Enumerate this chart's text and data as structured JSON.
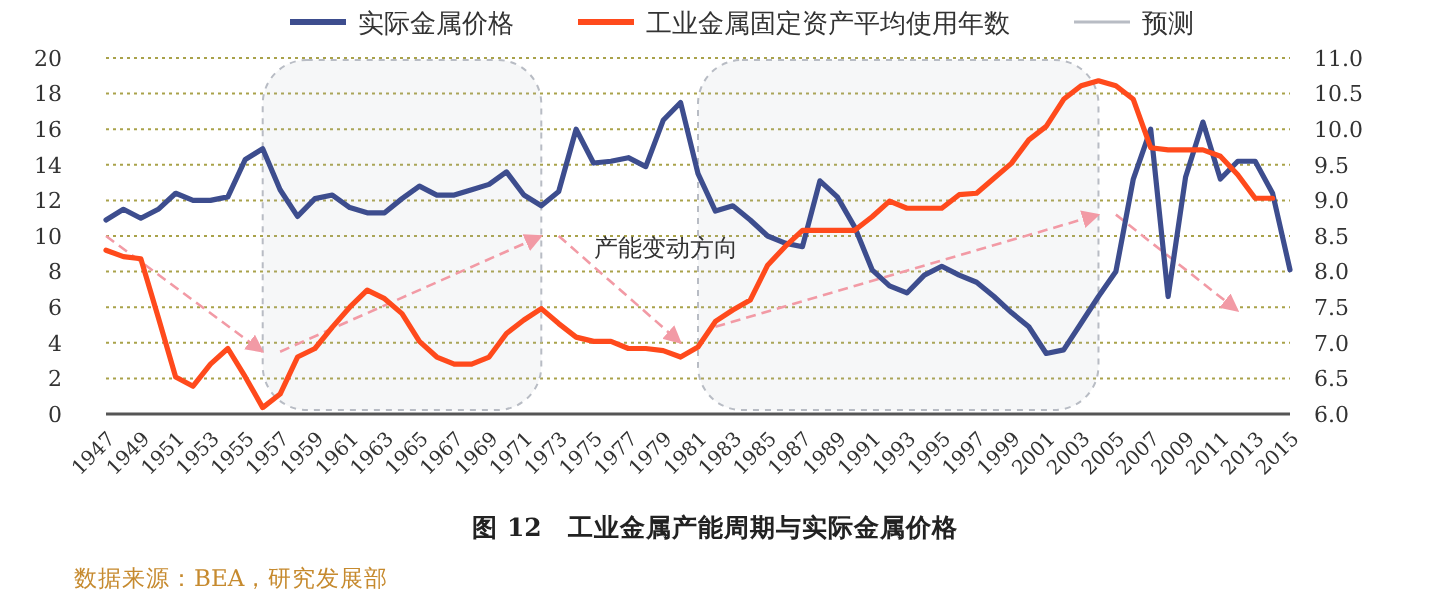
{
  "chart_data": {
    "type": "line",
    "title": "图 12　工业金属产能周期与实际金属价格",
    "annotations": [
      "产能变动方向",
      "数据来源：BEA，研究发展部"
    ],
    "x": [
      1947,
      1948,
      1949,
      1950,
      1951,
      1952,
      1953,
      1954,
      1955,
      1956,
      1957,
      1958,
      1959,
      1960,
      1961,
      1962,
      1963,
      1964,
      1965,
      1966,
      1967,
      1968,
      1969,
      1970,
      1971,
      1972,
      1973,
      1974,
      1975,
      1976,
      1977,
      1978,
      1979,
      1980,
      1981,
      1982,
      1983,
      1984,
      1985,
      1986,
      1987,
      1988,
      1989,
      1990,
      1991,
      1992,
      1993,
      1994,
      1995,
      1996,
      1997,
      1998,
      1999,
      2000,
      2001,
      2002,
      2003,
      2004,
      2005,
      2006,
      2007,
      2008,
      2009,
      2010,
      2011,
      2012,
      2013,
      2014,
      2015
    ],
    "series": [
      {
        "name": "实际金属价格",
        "color": "#3d4d8e",
        "values": [
          10.9,
          11.5,
          11.0,
          11.5,
          12.4,
          12.0,
          12.0,
          12.2,
          14.3,
          14.9,
          12.6,
          11.1,
          12.1,
          12.3,
          11.6,
          11.3,
          11.3,
          12.1,
          12.8,
          12.3,
          12.3,
          12.6,
          12.9,
          13.6,
          12.3,
          11.7,
          12.5,
          16.0,
          14.1,
          14.2,
          14.4,
          13.9,
          16.5,
          17.5,
          13.5,
          11.4,
          11.7,
          10.9,
          10.0,
          9.6,
          9.4,
          13.1,
          12.2,
          10.5,
          8.1,
          7.2,
          6.8,
          7.8,
          8.3,
          7.8,
          7.4,
          6.6,
          5.7,
          4.9,
          3.4,
          3.6,
          5.1,
          6.6,
          8.0,
          13.2,
          16.0,
          6.6,
          13.3,
          16.4,
          13.2,
          14.2,
          14.2,
          12.4,
          8.1
        ]
      },
      {
        "name": "工业金属固定资产平均使用年数",
        "color": "#ff4a1c",
        "axis": "y2",
        "values": [
          8.3,
          8.21,
          8.18,
          7.36,
          6.52,
          6.39,
          6.7,
          6.92,
          6.52,
          6.09,
          6.28,
          6.8,
          6.92,
          7.22,
          7.5,
          7.74,
          7.62,
          7.41,
          7.02,
          6.8,
          6.7,
          6.7,
          6.8,
          7.13,
          7.32,
          7.48,
          7.27,
          7.08,
          7.02,
          7.02,
          6.92,
          6.92,
          6.89,
          6.8,
          6.94,
          7.3,
          7.46,
          7.6,
          8.09,
          8.35,
          8.58,
          8.58,
          8.58,
          8.58,
          8.77,
          8.99,
          8.89,
          8.89,
          8.89,
          9.08,
          9.1,
          9.31,
          9.52,
          9.85,
          10.04,
          10.42,
          10.61,
          10.68,
          10.61,
          10.42,
          9.74,
          9.71,
          9.71,
          9.71,
          9.62,
          9.36,
          9.03,
          9.03,
          null
        ]
      }
    ],
    "bands": [
      {
        "axis": "x",
        "from": 1956,
        "to": 1972,
        "label": "预测",
        "color": "#b8bcc4"
      },
      {
        "axis": "x",
        "from": 1981,
        "to": 2004,
        "color": "#b8bcc4"
      }
    ],
    "xlim": [
      1947,
      2015
    ],
    "xticks": [
      1947,
      1949,
      1951,
      1953,
      1955,
      1957,
      1959,
      1961,
      1963,
      1965,
      1967,
      1969,
      1971,
      1973,
      1975,
      1977,
      1979,
      1981,
      1983,
      1985,
      1987,
      1989,
      1991,
      1993,
      1995,
      1997,
      1999,
      2001,
      2003,
      2005,
      2007,
      2009,
      2011,
      2013,
      2015
    ],
    "ylim": [
      0,
      20
    ],
    "yticks": [
      0,
      2,
      4,
      6,
      8,
      10,
      12,
      14,
      16,
      18,
      20
    ],
    "y2lim": [
      6,
      11
    ],
    "y2ticks": [
      {
        "value": 6,
        "label": "6.0"
      },
      {
        "value": 6.5,
        "label": "6.5"
      },
      {
        "value": 7,
        "label": "7.0"
      },
      {
        "value": 7.5,
        "label": "7.5"
      },
      {
        "value": 8,
        "label": "8.0"
      },
      {
        "value": 8.5,
        "label": "8.5"
      },
      {
        "value": 9,
        "label": "9.0"
      },
      {
        "value": 9.5,
        "label": "9.5"
      },
      {
        "value": 10,
        "label": "10.0"
      },
      {
        "value": 10.5,
        "label": "10.5"
      },
      {
        "value": 11,
        "label": "11.0"
      }
    ],
    "grid": "y",
    "legend": "top",
    "marker": "none",
    "line_style": "solid"
  }
}
